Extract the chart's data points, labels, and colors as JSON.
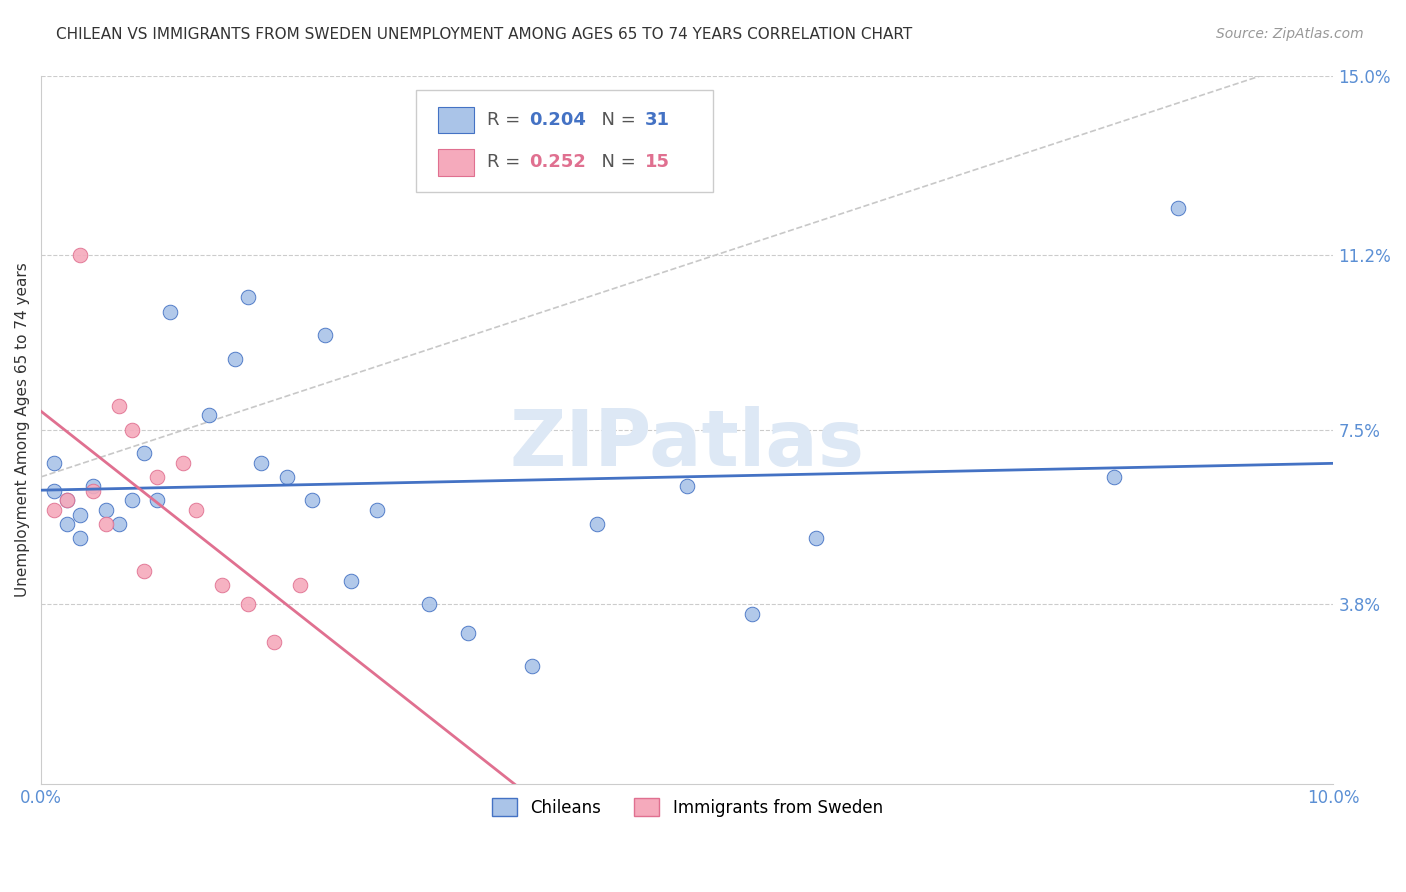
{
  "title": "CHILEAN VS IMMIGRANTS FROM SWEDEN UNEMPLOYMENT AMONG AGES 65 TO 74 YEARS CORRELATION CHART",
  "source": "Source: ZipAtlas.com",
  "ylabel": "Unemployment Among Ages 65 to 74 years",
  "xlim": [
    0.0,
    0.1
  ],
  "ylim": [
    0.0,
    0.15
  ],
  "yticks": [
    0.038,
    0.075,
    0.112,
    0.15
  ],
  "ytick_labels": [
    "3.8%",
    "7.5%",
    "11.2%",
    "15.0%"
  ],
  "xticks": [
    0.0,
    0.02,
    0.04,
    0.06,
    0.08,
    0.1
  ],
  "xtick_labels": [
    "0.0%",
    "",
    "",
    "",
    "",
    "10.0%"
  ],
  "chileans_x": [
    0.001,
    0.001,
    0.002,
    0.002,
    0.003,
    0.003,
    0.004,
    0.005,
    0.006,
    0.007,
    0.008,
    0.009,
    0.01,
    0.013,
    0.015,
    0.016,
    0.017,
    0.019,
    0.021,
    0.022,
    0.024,
    0.026,
    0.03,
    0.033,
    0.038,
    0.043,
    0.05,
    0.055,
    0.06,
    0.083,
    0.088
  ],
  "chileans_y": [
    0.068,
    0.062,
    0.06,
    0.055,
    0.057,
    0.052,
    0.063,
    0.058,
    0.055,
    0.06,
    0.07,
    0.06,
    0.1,
    0.078,
    0.09,
    0.103,
    0.068,
    0.065,
    0.06,
    0.095,
    0.043,
    0.058,
    0.038,
    0.032,
    0.025,
    0.055,
    0.063,
    0.036,
    0.052,
    0.065,
    0.122
  ],
  "sweden_x": [
    0.001,
    0.002,
    0.003,
    0.004,
    0.005,
    0.006,
    0.007,
    0.008,
    0.009,
    0.011,
    0.012,
    0.014,
    0.016,
    0.018,
    0.02
  ],
  "sweden_y": [
    0.058,
    0.06,
    0.112,
    0.062,
    0.055,
    0.08,
    0.075,
    0.045,
    0.065,
    0.068,
    0.058,
    0.042,
    0.038,
    0.03,
    0.042
  ],
  "chileans_color": "#aac4e8",
  "sweden_color": "#f5aabc",
  "chileans_edge_color": "#4472c4",
  "sweden_edge_color": "#e07090",
  "chileans_line_color": "#4472c4",
  "sweden_line_color": "#e07090",
  "diag_line_color": "#c8c8c8",
  "background_color": "#ffffff",
  "title_color": "#333333",
  "source_color": "#999999",
  "axis_label_color": "#333333",
  "tick_color": "#5b8fd4",
  "watermark_text": "ZIPatlas",
  "watermark_color": "#dde8f5",
  "marker_size": 110,
  "R_chileans": 0.204,
  "N_chileans": 31,
  "R_sweden": 0.252,
  "N_sweden": 15
}
